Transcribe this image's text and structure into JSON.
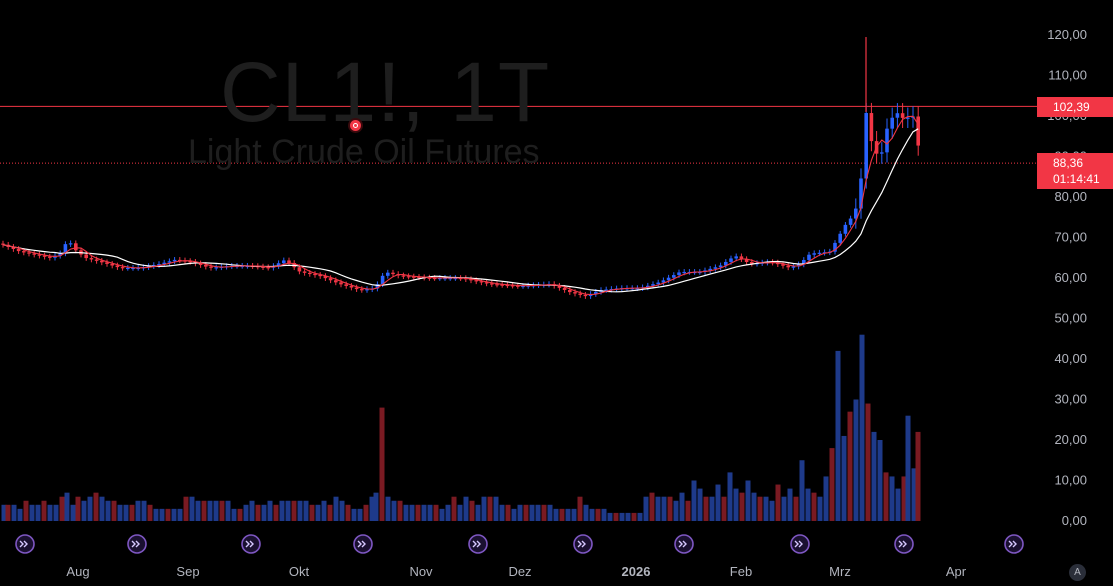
{
  "header": {
    "symbol_line": "CL1!, 1T",
    "name_line": "Light Crude Oil Futures"
  },
  "price_tags": {
    "last_close": "102,39",
    "current_price": "88,36",
    "countdown": "01:14:41"
  },
  "axis_badge": "A",
  "colors": {
    "background": "#000000",
    "up": "#2962ff",
    "down": "#f23645",
    "volume_up": "#1e3a8a",
    "volume_down": "#7a1a22",
    "ma_fast": "#f23645",
    "ma_slow": "#ffffff",
    "event_marker": "#7e57c2"
  },
  "event_marker_icon": "dividend-arrow-icon",
  "chart_data": {
    "type": "candlestick",
    "title": "CL1!, 1T",
    "subtitle": "Light Crude Oil Futures",
    "y_axis_labels": [
      "120,00",
      "110,00",
      "100,00",
      "90,00",
      "80,00",
      "70,00",
      "60,00",
      "50,00",
      "40,00",
      "30,00",
      "20,00",
      "10,00",
      "0,00"
    ],
    "x_axis_labels": [
      "Aug",
      "Sep",
      "Okt",
      "Nov",
      "Dez",
      "2026",
      "Feb",
      "Mrz",
      "Apr"
    ],
    "ylim": [
      0,
      120
    ],
    "horizontal_lines": [
      102.39,
      88.36
    ],
    "series": [
      {
        "name": "price",
        "approx_path": [
          [
            0,
            68.5
          ],
          [
            10,
            67.5
          ],
          [
            20,
            66.5
          ],
          [
            30,
            66
          ],
          [
            40,
            65.5
          ],
          [
            50,
            65
          ],
          [
            60,
            66
          ],
          [
            68,
            69.5
          ],
          [
            75,
            67
          ],
          [
            85,
            65
          ],
          [
            100,
            64
          ],
          [
            120,
            62.5
          ],
          [
            140,
            62.5
          ],
          [
            160,
            63.5
          ],
          [
            175,
            64.5
          ],
          [
            190,
            64
          ],
          [
            210,
            62.5
          ],
          [
            230,
            63
          ],
          [
            250,
            63
          ],
          [
            270,
            62.5
          ],
          [
            285,
            64.5
          ],
          [
            300,
            61.5
          ],
          [
            320,
            60.5
          ],
          [
            340,
            58.5
          ],
          [
            360,
            57
          ],
          [
            375,
            57.5
          ],
          [
            385,
            61.5
          ],
          [
            400,
            60.5
          ],
          [
            430,
            60
          ],
          [
            460,
            60
          ],
          [
            490,
            58.5
          ],
          [
            520,
            58
          ],
          [
            550,
            58.5
          ],
          [
            570,
            56.5
          ],
          [
            585,
            55.5
          ],
          [
            600,
            57
          ],
          [
            620,
            57.5
          ],
          [
            640,
            57.5
          ],
          [
            660,
            59
          ],
          [
            680,
            61.5
          ],
          [
            700,
            61.5
          ],
          [
            720,
            63
          ],
          [
            735,
            65.5
          ],
          [
            750,
            63.5
          ],
          [
            770,
            64
          ],
          [
            790,
            62.5
          ],
          [
            800,
            63.5
          ],
          [
            810,
            66
          ],
          [
            830,
            66.5
          ],
          [
            845,
            73
          ],
          [
            855,
            76
          ],
          [
            862,
            86
          ],
          [
            866,
            101
          ],
          [
            872,
            93
          ],
          [
            880,
            89
          ],
          [
            888,
            98
          ],
          [
            896,
            101
          ],
          [
            905,
            99
          ],
          [
            912,
            100.5
          ],
          [
            916,
            98
          ],
          [
            920,
            88.36
          ]
        ]
      }
    ],
    "volume_approx": [
      [
        4,
        4
      ],
      [
        8,
        4
      ],
      [
        14,
        4
      ],
      [
        20,
        3
      ],
      [
        26,
        5
      ],
      [
        32,
        4
      ],
      [
        38,
        4
      ],
      [
        44,
        5
      ],
      [
        50,
        4
      ],
      [
        56,
        4
      ],
      [
        62,
        6
      ],
      [
        67,
        7
      ],
      [
        73,
        4
      ],
      [
        78,
        6
      ],
      [
        84,
        5
      ],
      [
        90,
        6
      ],
      [
        96,
        7
      ],
      [
        102,
        6
      ],
      [
        108,
        5
      ],
      [
        114,
        5
      ],
      [
        120,
        4
      ],
      [
        126,
        4
      ],
      [
        132,
        4
      ],
      [
        138,
        5
      ],
      [
        144,
        5
      ],
      [
        150,
        4
      ],
      [
        156,
        3
      ],
      [
        162,
        3
      ],
      [
        168,
        3
      ],
      [
        174,
        3
      ],
      [
        180,
        3
      ],
      [
        186,
        6
      ],
      [
        192,
        6
      ],
      [
        198,
        5
      ],
      [
        204,
        5
      ],
      [
        210,
        5
      ],
      [
        216,
        5
      ],
      [
        222,
        5
      ],
      [
        228,
        5
      ],
      [
        234,
        3
      ],
      [
        240,
        3
      ],
      [
        246,
        4
      ],
      [
        252,
        5
      ],
      [
        258,
        4
      ],
      [
        264,
        4
      ],
      [
        270,
        5
      ],
      [
        276,
        4
      ],
      [
        282,
        5
      ],
      [
        288,
        5
      ],
      [
        294,
        5
      ],
      [
        300,
        5
      ],
      [
        306,
        5
      ],
      [
        312,
        4
      ],
      [
        318,
        4
      ],
      [
        324,
        5
      ],
      [
        330,
        4
      ],
      [
        336,
        6
      ],
      [
        342,
        5
      ],
      [
        348,
        4
      ],
      [
        354,
        3
      ],
      [
        360,
        3
      ],
      [
        366,
        4
      ],
      [
        372,
        6
      ],
      [
        376,
        7
      ],
      [
        382,
        28
      ],
      [
        388,
        6
      ],
      [
        394,
        5
      ],
      [
        400,
        5
      ],
      [
        406,
        4
      ],
      [
        412,
        4
      ],
      [
        418,
        4
      ],
      [
        424,
        4
      ],
      [
        430,
        4
      ],
      [
        436,
        4
      ],
      [
        442,
        3
      ],
      [
        448,
        4
      ],
      [
        454,
        6
      ],
      [
        460,
        4
      ],
      [
        466,
        6
      ],
      [
        472,
        5
      ],
      [
        478,
        4
      ],
      [
        484,
        6
      ],
      [
        490,
        6
      ],
      [
        496,
        6
      ],
      [
        502,
        4
      ],
      [
        508,
        4
      ],
      [
        514,
        3
      ],
      [
        520,
        4
      ],
      [
        526,
        4
      ],
      [
        532,
        4
      ],
      [
        538,
        4
      ],
      [
        544,
        4
      ],
      [
        550,
        4
      ],
      [
        556,
        3
      ],
      [
        562,
        3
      ],
      [
        568,
        3
      ],
      [
        574,
        3
      ],
      [
        580,
        6
      ],
      [
        586,
        4
      ],
      [
        592,
        3
      ],
      [
        598,
        3
      ],
      [
        604,
        3
      ],
      [
        610,
        2
      ],
      [
        616,
        2
      ],
      [
        622,
        2
      ],
      [
        628,
        2
      ],
      [
        634,
        2
      ],
      [
        640,
        2
      ],
      [
        646,
        6
      ],
      [
        652,
        7
      ],
      [
        658,
        6
      ],
      [
        664,
        6
      ],
      [
        670,
        6
      ],
      [
        676,
        5
      ],
      [
        682,
        7
      ],
      [
        688,
        5
      ],
      [
        694,
        10
      ],
      [
        700,
        8
      ],
      [
        706,
        6
      ],
      [
        712,
        6
      ],
      [
        718,
        9
      ],
      [
        724,
        6
      ],
      [
        730,
        12
      ],
      [
        736,
        8
      ],
      [
        742,
        7
      ],
      [
        748,
        10
      ],
      [
        754,
        7
      ],
      [
        760,
        6
      ],
      [
        766,
        6
      ],
      [
        772,
        5
      ],
      [
        778,
        9
      ],
      [
        784,
        6
      ],
      [
        790,
        8
      ],
      [
        796,
        6
      ],
      [
        802,
        15
      ],
      [
        808,
        8
      ],
      [
        814,
        7
      ],
      [
        820,
        6
      ],
      [
        826,
        11
      ],
      [
        832,
        18
      ],
      [
        838,
        42
      ],
      [
        844,
        21
      ],
      [
        850,
        27
      ],
      [
        856,
        30
      ],
      [
        862,
        46
      ],
      [
        868,
        29
      ],
      [
        874,
        22
      ],
      [
        880,
        20
      ],
      [
        886,
        12
      ],
      [
        892,
        11
      ],
      [
        898,
        8
      ],
      [
        904,
        11
      ],
      [
        908,
        26
      ],
      [
        914,
        13
      ],
      [
        918,
        22
      ]
    ],
    "event_markers_x": [
      25,
      137,
      251,
      363,
      478,
      583,
      684,
      800,
      904,
      1014
    ]
  }
}
